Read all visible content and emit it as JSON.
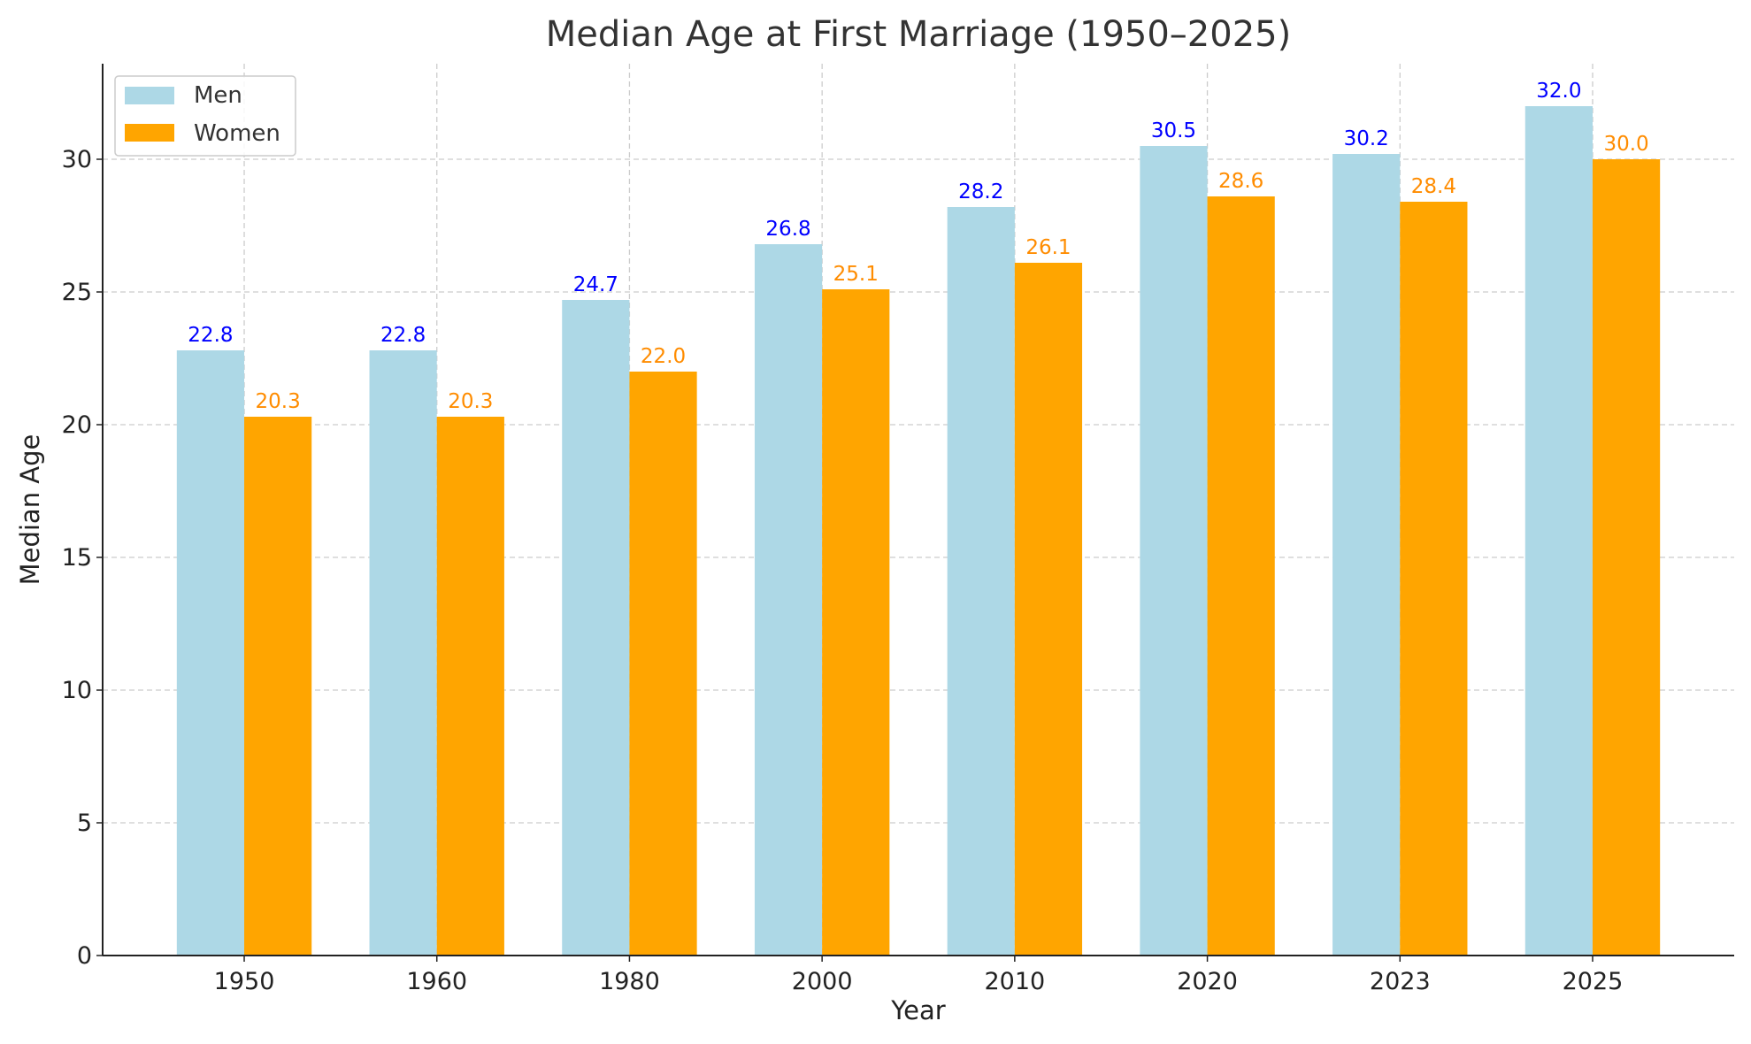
{
  "chart_data": {
    "type": "bar",
    "title": "Median Age at First Marriage (1950–2025)",
    "xlabel": "Year",
    "ylabel": "Median Age",
    "categories": [
      "1950",
      "1960",
      "1980",
      "2000",
      "2010",
      "2020",
      "2023",
      "2025"
    ],
    "series": [
      {
        "name": "Men",
        "values": [
          22.8,
          22.8,
          24.7,
          26.8,
          28.2,
          30.5,
          30.2,
          32.0
        ],
        "color": "#add8e6",
        "label_color": "#0000ff"
      },
      {
        "name": "Women",
        "values": [
          20.3,
          20.3,
          22.0,
          25.1,
          26.1,
          28.6,
          28.4,
          30.0
        ],
        "color": "#ffa500",
        "label_color": "#ff8c00"
      }
    ],
    "ylim": [
      0,
      33.6
    ],
    "yticks": [
      0,
      5,
      10,
      15,
      20,
      25,
      30
    ],
    "grid": true,
    "legend_position": "top-left"
  }
}
